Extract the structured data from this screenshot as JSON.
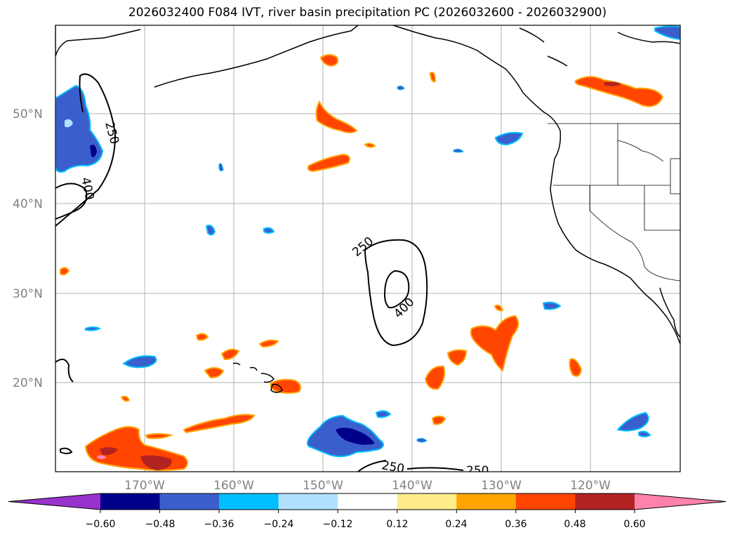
{
  "title": "2026032400 F084 IVT, river basin precipitation PC (2026032600 - 2026032900)",
  "lat_labels": [
    "50°N",
    "40°N",
    "30°N",
    "20°N"
  ],
  "lon_labels": [
    "170°W",
    "160°W",
    "150°W",
    "140°W",
    "130°W",
    "120°W"
  ],
  "contour_labels": [
    "250",
    "400",
    "250",
    "400",
    "250",
    "250"
  ],
  "colorbar": {
    "colors": [
      "#9932cc",
      "#00008b",
      "#3a5fcd",
      "#00bfff",
      "#b0e2ff",
      "#ffffff",
      "#ffec8b",
      "#ffa500",
      "#ff4500",
      "#b22222",
      "#ff82ab"
    ],
    "tick_labels": [
      "−0.60",
      "−0.48",
      "−0.36",
      "−0.24",
      "−0.12",
      "0.12",
      "0.24",
      "0.36",
      "0.48",
      "0.60"
    ]
  }
}
